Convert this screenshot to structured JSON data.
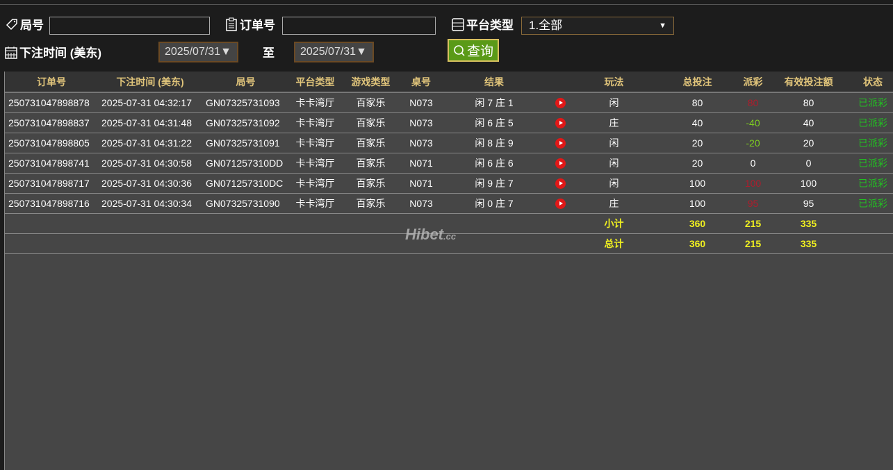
{
  "filters": {
    "game_no_label": "局号",
    "game_no_value": "",
    "order_no_label": "订单号",
    "order_no_value": "",
    "platform_label": "平台类型",
    "platform_selected": "1.全部",
    "bet_time_label": "下注时间 (美东)",
    "date_from": "2025/07/31▼",
    "to_label": "至",
    "date_to": "2025/07/31▼",
    "search_label": "查询"
  },
  "table": {
    "headers": [
      "订单号",
      "下注时间 (美东)",
      "局号",
      "平台类型",
      "游戏类型",
      "桌号",
      "结果",
      "",
      "玩法",
      "总投注",
      "派彩",
      "有效投注额",
      "状态"
    ],
    "rows": [
      {
        "order": "250731047898878",
        "time": "2025-07-31 04:32:17",
        "game": "GN07325731093",
        "platform": "卡卡湾厅",
        "type": "百家乐",
        "table": "N073",
        "result": "闲 7 庄 1",
        "play": "闲",
        "bet": "80",
        "payout": "80",
        "payout_color": "pos",
        "valid": "80",
        "status": "已派彩"
      },
      {
        "order": "250731047898837",
        "time": "2025-07-31 04:31:48",
        "game": "GN07325731092",
        "platform": "卡卡湾厅",
        "type": "百家乐",
        "table": "N073",
        "result": "闲 6 庄 5",
        "play": "庄",
        "bet": "40",
        "payout": "-40",
        "payout_color": "neg",
        "valid": "40",
        "status": "已派彩"
      },
      {
        "order": "250731047898805",
        "time": "2025-07-31 04:31:22",
        "game": "GN07325731091",
        "platform": "卡卡湾厅",
        "type": "百家乐",
        "table": "N073",
        "result": "闲 8 庄 9",
        "play": "闲",
        "bet": "20",
        "payout": "-20",
        "payout_color": "neg",
        "valid": "20",
        "status": "已派彩"
      },
      {
        "order": "250731047898741",
        "time": "2025-07-31 04:30:58",
        "game": "GN071257310DD",
        "platform": "卡卡湾厅",
        "type": "百家乐",
        "table": "N071",
        "result": "闲 6 庄 6",
        "play": "闲",
        "bet": "20",
        "payout": "0",
        "payout_color": "zero",
        "valid": "0",
        "status": "已派彩"
      },
      {
        "order": "250731047898717",
        "time": "2025-07-31 04:30:36",
        "game": "GN071257310DC",
        "platform": "卡卡湾厅",
        "type": "百家乐",
        "table": "N071",
        "result": "闲 9 庄 7",
        "play": "闲",
        "bet": "100",
        "payout": "100",
        "payout_color": "pos",
        "valid": "100",
        "status": "已派彩"
      },
      {
        "order": "250731047898716",
        "time": "2025-07-31 04:30:34",
        "game": "GN07325731090",
        "platform": "卡卡湾厅",
        "type": "百家乐",
        "table": "N073",
        "result": "闲 0 庄 7",
        "play": "庄",
        "bet": "100",
        "payout": "95",
        "payout_color": "pos",
        "valid": "95",
        "status": "已派彩"
      }
    ],
    "subtotal": {
      "label": "小计",
      "bet": "360",
      "payout": "215",
      "valid": "335"
    },
    "total": {
      "label": "总计",
      "bet": "360",
      "payout": "215",
      "valid": "335"
    }
  },
  "watermark": "Hibet.cc"
}
